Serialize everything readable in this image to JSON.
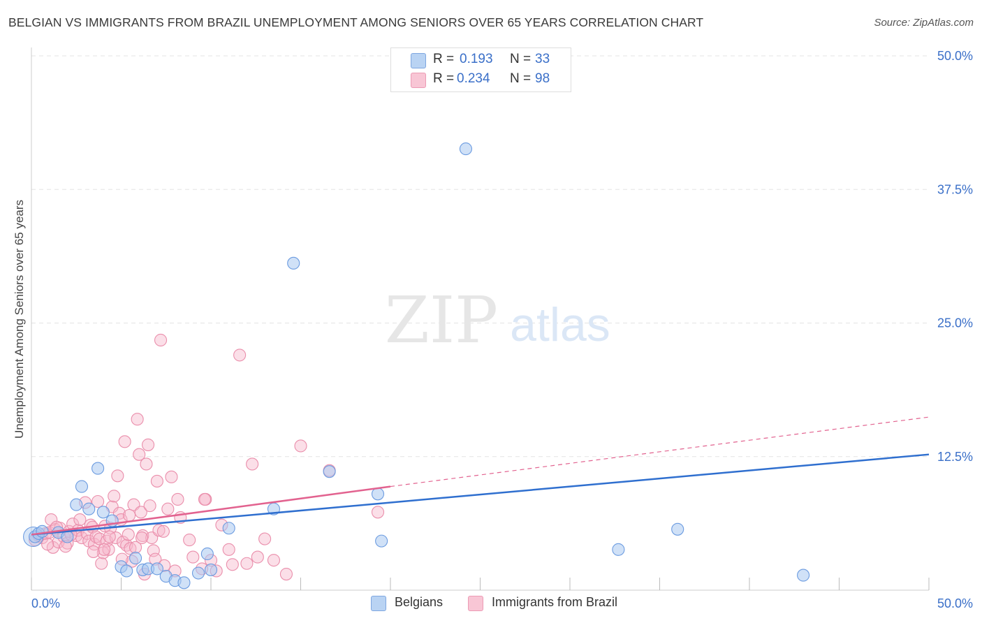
{
  "title": "BELGIAN VS IMMIGRANTS FROM BRAZIL UNEMPLOYMENT AMONG SENIORS OVER 65 YEARS CORRELATION CHART",
  "source": "Source: ZipAtlas.com",
  "watermark": {
    "zip": "ZIP",
    "atlas": "atlas"
  },
  "legend": {
    "belgians": {
      "r_label": "R =",
      "r_value": "0.193",
      "n_label": "N =",
      "n_value": "33"
    },
    "brazil": {
      "r_label": "R =",
      "r_value": "0.234",
      "n_label": "N =",
      "n_value": "98"
    }
  },
  "colors": {
    "belgians_fill": "#a9c8f0",
    "belgians_stroke": "#6b9be0",
    "belgians_line": "#2f6fcf",
    "brazil_fill": "#f6b8cb",
    "brazil_stroke": "#ea8eab",
    "brazil_line": "#e2628f",
    "grid": "#e3e3e3",
    "axis_text": "#3a6fc8"
  },
  "chart_data": {
    "type": "scatter",
    "title": "BELGIAN VS IMMIGRANTS FROM BRAZIL UNEMPLOYMENT AMONG SENIORS OVER 65 YEARS CORRELATION CHART",
    "xlabel": "",
    "ylabel": "Unemployment Among Seniors over 65 years",
    "xlim": [
      0,
      50
    ],
    "ylim": [
      0,
      50
    ],
    "x_tick_labels": [
      "0.0%",
      "50.0%"
    ],
    "y_tick_labels": [
      "12.5%",
      "25.0%",
      "37.5%",
      "50.0%"
    ],
    "y_ticks": [
      12.5,
      25.0,
      37.5,
      50.0
    ],
    "x_minor_ticks": [
      0,
      5,
      10,
      15,
      20,
      25,
      30,
      35,
      40,
      45,
      50
    ],
    "series": [
      {
        "name": "Belgians",
        "r": 0.193,
        "n": 33,
        "trend": {
          "x": [
            0,
            50
          ],
          "y": [
            5.2,
            12.7
          ],
          "style": "solid"
        },
        "points": [
          [
            0.2,
            5.0
          ],
          [
            0.4,
            5.3
          ],
          [
            0.6,
            5.5
          ],
          [
            1.5,
            5.4
          ],
          [
            2.0,
            5.0
          ],
          [
            2.5,
            8.0
          ],
          [
            2.8,
            9.7
          ],
          [
            3.2,
            7.6
          ],
          [
            3.7,
            11.4
          ],
          [
            4.0,
            7.3
          ],
          [
            4.5,
            6.5
          ],
          [
            5.0,
            2.2
          ],
          [
            5.3,
            1.8
          ],
          [
            5.8,
            3.0
          ],
          [
            6.2,
            1.9
          ],
          [
            6.5,
            2.0
          ],
          [
            7.0,
            2.0
          ],
          [
            7.5,
            1.3
          ],
          [
            8.0,
            0.9
          ],
          [
            8.5,
            0.7
          ],
          [
            9.3,
            1.6
          ],
          [
            9.8,
            3.4
          ],
          [
            10.0,
            1.9
          ],
          [
            11.0,
            5.8
          ],
          [
            13.5,
            7.6
          ],
          [
            14.6,
            30.6
          ],
          [
            16.6,
            11.1
          ],
          [
            19.5,
            4.6
          ],
          [
            19.3,
            9.0
          ],
          [
            24.2,
            41.3
          ],
          [
            32.7,
            3.8
          ],
          [
            36.0,
            5.7
          ],
          [
            43.0,
            1.4
          ]
        ]
      },
      {
        "name": "Immigrants from Brazil",
        "r": 0.234,
        "n": 98,
        "trend": {
          "x": [
            0,
            20
          ],
          "y": [
            5.2,
            9.7
          ],
          "style": "solid",
          "dashed_extension": {
            "x": [
              20,
              50
            ],
            "y": [
              9.7,
              16.2
            ]
          }
        },
        "points": [
          [
            0.2,
            4.7
          ],
          [
            0.4,
            5.1
          ],
          [
            0.6,
            4.9
          ],
          [
            0.8,
            5.3
          ],
          [
            1.0,
            5.4
          ],
          [
            1.2,
            4.0
          ],
          [
            1.3,
            5.7
          ],
          [
            1.5,
            4.5
          ],
          [
            1.6,
            5.8
          ],
          [
            1.8,
            5.0
          ],
          [
            2.0,
            4.4
          ],
          [
            2.1,
            5.5
          ],
          [
            2.3,
            6.2
          ],
          [
            2.5,
            5.1
          ],
          [
            2.6,
            5.6
          ],
          [
            2.8,
            4.9
          ],
          [
            3.0,
            8.2
          ],
          [
            3.1,
            5.3
          ],
          [
            3.2,
            4.6
          ],
          [
            3.3,
            6.1
          ],
          [
            3.4,
            5.9
          ],
          [
            3.5,
            4.3
          ],
          [
            3.6,
            5.0
          ],
          [
            3.7,
            8.3
          ],
          [
            3.8,
            4.8
          ],
          [
            3.9,
            2.5
          ],
          [
            4.0,
            3.5
          ],
          [
            4.1,
            6.0
          ],
          [
            4.2,
            4.6
          ],
          [
            4.3,
            3.8
          ],
          [
            4.4,
            5.8
          ],
          [
            4.5,
            7.8
          ],
          [
            4.6,
            8.8
          ],
          [
            4.7,
            4.9
          ],
          [
            4.8,
            10.7
          ],
          [
            4.9,
            7.2
          ],
          [
            5.0,
            6.6
          ],
          [
            5.1,
            4.5
          ],
          [
            5.2,
            13.9
          ],
          [
            5.3,
            4.2
          ],
          [
            5.4,
            5.2
          ],
          [
            5.5,
            3.9
          ],
          [
            5.6,
            2.7
          ],
          [
            5.7,
            8.0
          ],
          [
            5.8,
            4.0
          ],
          [
            5.9,
            16.0
          ],
          [
            6.0,
            12.7
          ],
          [
            6.1,
            7.3
          ],
          [
            6.2,
            5.1
          ],
          [
            6.3,
            1.5
          ],
          [
            6.4,
            11.8
          ],
          [
            6.5,
            13.6
          ],
          [
            6.6,
            7.9
          ],
          [
            6.7,
            4.9
          ],
          [
            6.8,
            3.7
          ],
          [
            6.9,
            2.9
          ],
          [
            7.0,
            10.2
          ],
          [
            7.1,
            5.6
          ],
          [
            7.2,
            23.4
          ],
          [
            7.4,
            2.3
          ],
          [
            7.6,
            7.6
          ],
          [
            7.8,
            10.6
          ],
          [
            8.0,
            1.8
          ],
          [
            8.3,
            6.8
          ],
          [
            8.8,
            4.7
          ],
          [
            9.0,
            3.1
          ],
          [
            9.5,
            2.0
          ],
          [
            9.7,
            8.5
          ],
          [
            10.0,
            2.8
          ],
          [
            10.3,
            1.8
          ],
          [
            10.6,
            6.1
          ],
          [
            11.0,
            3.8
          ],
          [
            11.2,
            2.4
          ],
          [
            11.6,
            22.0
          ],
          [
            12.0,
            2.5
          ],
          [
            12.3,
            11.8
          ],
          [
            12.6,
            3.1
          ],
          [
            13.0,
            4.8
          ],
          [
            13.5,
            2.8
          ],
          [
            14.2,
            1.5
          ],
          [
            15.0,
            13.5
          ],
          [
            16.6,
            11.2
          ],
          [
            19.3,
            7.3
          ],
          [
            1.1,
            6.6
          ],
          [
            2.7,
            6.6
          ],
          [
            4.05,
            3.8
          ],
          [
            5.45,
            7.0
          ],
          [
            6.15,
            4.9
          ],
          [
            7.35,
            5.5
          ],
          [
            8.15,
            8.5
          ],
          [
            9.65,
            8.5
          ],
          [
            3.45,
            3.6
          ],
          [
            1.9,
            4.1
          ],
          [
            2.2,
            5.2
          ],
          [
            4.35,
            5.0
          ],
          [
            0.9,
            4.3
          ],
          [
            1.4,
            5.9
          ],
          [
            5.05,
            2.9
          ]
        ]
      }
    ],
    "legend": [
      "Belgians",
      "Immigrants from Brazil"
    ]
  },
  "bottom_legend": {
    "belgians": "Belgians",
    "brazil": "Immigrants from Brazil"
  }
}
